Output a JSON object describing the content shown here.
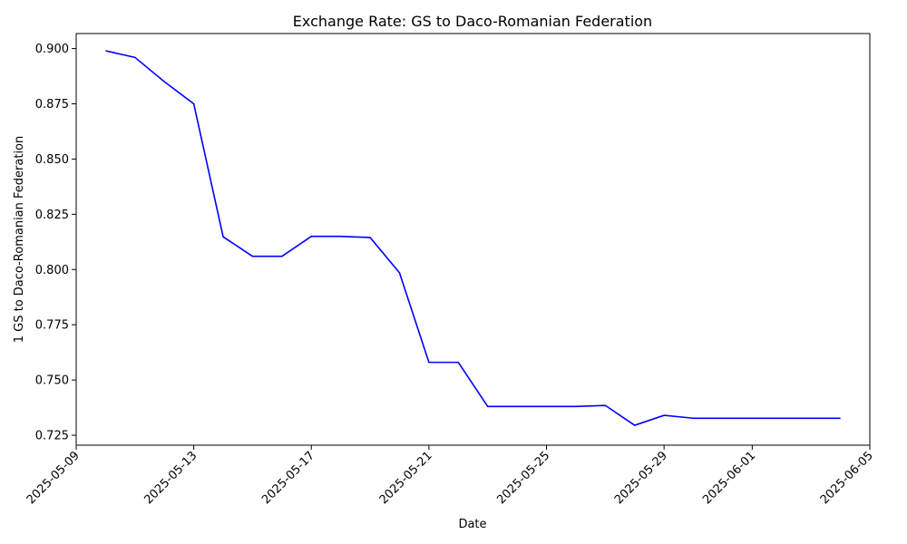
{
  "chart_data": {
    "type": "line",
    "title": "Exchange Rate: GS to Daco-Romanian Federation",
    "xlabel": "Date",
    "ylabel": "1 GS to Daco-Romanian Federation",
    "grid": false,
    "xlim": [
      "2025-05-09",
      "2025-06-05"
    ],
    "ylim": [
      0.7205,
      0.9068
    ],
    "x_ticks": [
      "2025-05-09",
      "2025-05-13",
      "2025-05-17",
      "2025-05-21",
      "2025-05-25",
      "2025-05-29",
      "2025-06-01",
      "2025-06-05"
    ],
    "y_ticks": [
      "0.725",
      "0.750",
      "0.775",
      "0.800",
      "0.825",
      "0.850",
      "0.875",
      "0.900"
    ],
    "series": [
      {
        "color": "#0000ff",
        "x": [
          "2025-05-10",
          "2025-05-11",
          "2025-05-12",
          "2025-05-13",
          "2025-05-14",
          "2025-05-15",
          "2025-05-16",
          "2025-05-17",
          "2025-05-18",
          "2025-05-19",
          "2025-05-20",
          "2025-05-21",
          "2025-05-22",
          "2025-05-23",
          "2025-05-24",
          "2025-05-25",
          "2025-05-26",
          "2025-05-27",
          "2025-05-28",
          "2025-05-29",
          "2025-05-30",
          "2025-05-31",
          "2025-06-01",
          "2025-06-02",
          "2025-06-03",
          "2025-06-04"
        ],
        "values": [
          0.899,
          0.896,
          0.885,
          0.875,
          0.8148,
          0.806,
          0.806,
          0.815,
          0.815,
          0.8145,
          0.7985,
          0.758,
          0.758,
          0.738,
          0.738,
          0.738,
          0.738,
          0.7385,
          0.7295,
          0.734,
          0.7327,
          0.7327,
          0.7327,
          0.7327,
          0.7327,
          0.7327
        ]
      }
    ]
  }
}
